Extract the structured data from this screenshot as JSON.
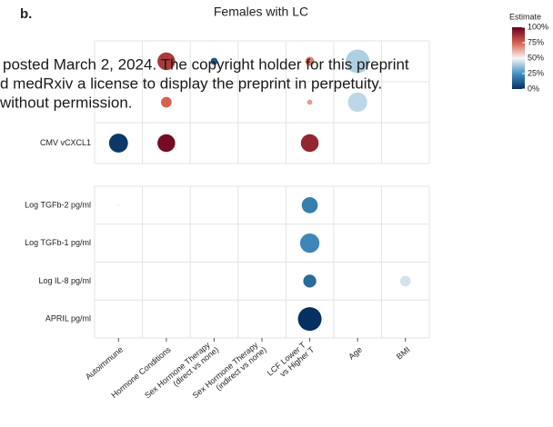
{
  "chart_data": {
    "type": "dot-matrix",
    "panel_label": "b.",
    "title": "Females with LC",
    "x_categories": [
      [
        "Autoimmune"
      ],
      [
        "Hormone Conditions"
      ],
      [
        "Sex Hormone Therapy",
        "(direct vs none)"
      ],
      [
        "Sex Hormone Therapy",
        "(indirect vs none)"
      ],
      [
        "LCF Lower T",
        "vs Higher T"
      ],
      [
        "Age"
      ],
      [
        "BMI"
      ]
    ],
    "panels": [
      {
        "rows": [
          {
            "label": null,
            "values": [
              null,
              85,
              10,
              null,
              70,
              40,
              null
            ],
            "sizes": [
              null,
              0.75,
              0.3,
              null,
              0.38,
              1.0,
              null
            ]
          },
          {
            "label": null,
            "values": [
              null,
              75,
              null,
              null,
              65,
              42,
              null
            ],
            "sizes": [
              null,
              0.45,
              null,
              null,
              0.22,
              0.82,
              null
            ]
          },
          {
            "label": "CMV vCXCL1",
            "values": [
              2,
              97,
              null,
              null,
              90,
              null,
              null
            ],
            "sizes": [
              0.8,
              0.75,
              null,
              null,
              0.75,
              null,
              null
            ]
          }
        ]
      },
      {
        "rows": [
          {
            "label": "Log TGFb-2 pg/ml",
            "values": [
              45,
              null,
              null,
              null,
              20,
              null,
              null
            ],
            "sizes": [
              0.06,
              null,
              null,
              null,
              0.68,
              null,
              null
            ]
          },
          {
            "label": "Log TGFb-1 pg/ml",
            "values": [
              null,
              null,
              null,
              null,
              22,
              null,
              null
            ],
            "sizes": [
              null,
              null,
              null,
              null,
              0.82,
              null,
              null
            ]
          },
          {
            "label": "Log IL-8 pg/ml",
            "values": [
              null,
              null,
              null,
              null,
              15,
              null,
              45
            ],
            "sizes": [
              null,
              null,
              null,
              null,
              0.55,
              null,
              0.45
            ]
          },
          {
            "label": "APRIL pg/ml",
            "values": [
              null,
              null,
              null,
              null,
              0,
              null,
              null
            ],
            "sizes": [
              null,
              null,
              null,
              null,
              1.0,
              null,
              null
            ]
          }
        ]
      }
    ],
    "legend": {
      "title": "Estimate",
      "lim": [
        0,
        100
      ],
      "colors": [
        "#053061",
        "#4393c3",
        "#f7f7f7",
        "#d6604d",
        "#67001f"
      ],
      "ticks": [
        {
          "value": 100,
          "label": "100%"
        },
        {
          "value": 75,
          "label": "75%"
        },
        {
          "value": 50,
          "label": "50%"
        },
        {
          "value": 25,
          "label": "25%"
        },
        {
          "value": 0,
          "label": "0%"
        }
      ]
    },
    "watermark": [
      "posted March 2, 2024. The copyright holder for this preprint",
      "d medRxiv a license to display the preprint in perpetuity.",
      "without permission."
    ]
  }
}
